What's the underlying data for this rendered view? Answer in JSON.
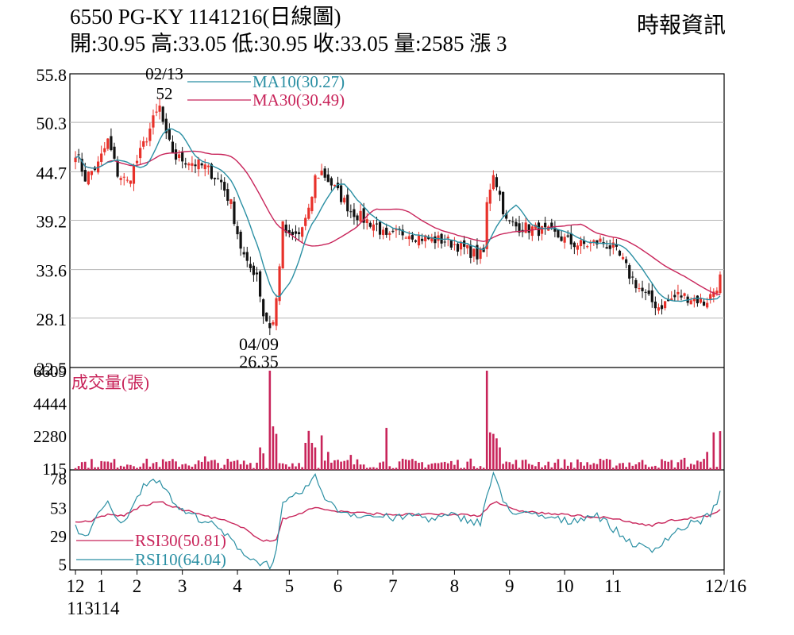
{
  "header": {
    "title": "6550  PG-KY 1141216(日線圖)",
    "quote": "開:30.95 高:33.05 低:30.95 收:33.05 量:2585 漲 3",
    "source": "時報資訊"
  },
  "chart_data": {
    "type": "candlestick",
    "colors": {
      "up": "#e8312a",
      "down": "#111111",
      "ma10": "#2a8fa3",
      "ma30": "#c8245a",
      "volume": "#c8245a",
      "rsi10": "#2a8fa3",
      "rsi30": "#c8245a",
      "grid": "#b5b5b5"
    },
    "price_panel": {
      "y_ticks": [
        "55.8",
        "50.3",
        "44.7",
        "39.2",
        "33.6",
        "28.1",
        "22.5"
      ],
      "ylim": [
        22.5,
        55.8
      ],
      "legend": [
        "MA10(30.27)",
        "MA30(30.49)"
      ],
      "annotations": [
        {
          "date": "02/13",
          "value": "52"
        },
        {
          "date": "04/09",
          "value": "26.35"
        }
      ]
    },
    "volume_panel": {
      "label": "成交量(張)",
      "y_ticks": [
        "6609",
        "4444",
        "2280",
        "115"
      ],
      "ylim": [
        0,
        6609
      ]
    },
    "rsi_panel": {
      "y_ticks": [
        "78",
        "53",
        "29",
        "5"
      ],
      "ylim": [
        0,
        85
      ],
      "legend": [
        "RSI30(50.81)",
        "RSI10(64.04)"
      ]
    },
    "x_labels": [
      {
        "text": "12",
        "sub": "113",
        "index": 0
      },
      {
        "text": "1",
        "sub": "114",
        "index": 8
      },
      {
        "text": "2",
        "sub": "",
        "index": 19
      },
      {
        "text": "3",
        "sub": "",
        "index": 33
      },
      {
        "text": "4",
        "sub": "",
        "index": 50
      },
      {
        "text": "5",
        "sub": "",
        "index": 66
      },
      {
        "text": "6",
        "sub": "",
        "index": 81
      },
      {
        "text": "7",
        "sub": "",
        "index": 98
      },
      {
        "text": "8",
        "sub": "",
        "index": 117
      },
      {
        "text": "9",
        "sub": "",
        "index": 134
      },
      {
        "text": "10",
        "sub": "",
        "index": 151
      },
      {
        "text": "11",
        "sub": "",
        "index": 166
      },
      {
        "text": "12/16",
        "sub": "",
        "index": 199
      }
    ],
    "close_anchors": [
      [
        0,
        47
      ],
      [
        3,
        44
      ],
      [
        7,
        45.5
      ],
      [
        10,
        48.2
      ],
      [
        13,
        44.5
      ],
      [
        16,
        43.5
      ],
      [
        20,
        46.8
      ],
      [
        24,
        50.5
      ],
      [
        26,
        52
      ],
      [
        28,
        48.5
      ],
      [
        31,
        46.3
      ],
      [
        35,
        45.9
      ],
      [
        40,
        45.2
      ],
      [
        45,
        43.5
      ],
      [
        48,
        41
      ],
      [
        51,
        36.2
      ],
      [
        53,
        34
      ],
      [
        56,
        33.2
      ],
      [
        58,
        28.5
      ],
      [
        60,
        27.2
      ],
      [
        61,
        27.6
      ],
      [
        62,
        30.2
      ],
      [
        64,
        38.5
      ],
      [
        66,
        37.2
      ],
      [
        69,
        37.6
      ],
      [
        72,
        40
      ],
      [
        74,
        44
      ],
      [
        76,
        44.7
      ],
      [
        79,
        43.3
      ],
      [
        82,
        41.8
      ],
      [
        85,
        40.3
      ],
      [
        89,
        39.3
      ],
      [
        93,
        38.6
      ],
      [
        96,
        37
      ],
      [
        99,
        37.6
      ],
      [
        102,
        37.9
      ],
      [
        106,
        37.3
      ],
      [
        110,
        37
      ],
      [
        114,
        36.9
      ],
      [
        117,
        36.5
      ],
      [
        120,
        36
      ],
      [
        124,
        35.2
      ],
      [
        126,
        35.5
      ],
      [
        127,
        41
      ],
      [
        128,
        43
      ],
      [
        129,
        44.7
      ],
      [
        131,
        42
      ],
      [
        133,
        39
      ],
      [
        136,
        38.5
      ],
      [
        140,
        38.3
      ],
      [
        144,
        38
      ],
      [
        147,
        37.7
      ],
      [
        150,
        37.2
      ],
      [
        153,
        36.6
      ],
      [
        156,
        36.4
      ],
      [
        159,
        36.5
      ],
      [
        162,
        36.8
      ],
      [
        166,
        36
      ],
      [
        169,
        34.5
      ],
      [
        171,
        33
      ],
      [
        174,
        31.5
      ],
      [
        177,
        30.2
      ],
      [
        180,
        29.4
      ],
      [
        183,
        30
      ],
      [
        186,
        30.7
      ],
      [
        189,
        30.5
      ],
      [
        192,
        30.2
      ],
      [
        194,
        29.8
      ],
      [
        196,
        30.6
      ],
      [
        198,
        31.8
      ],
      [
        199,
        33.05
      ]
    ],
    "rsi10_anchors": [
      [
        0,
        36
      ],
      [
        3,
        28
      ],
      [
        6,
        42
      ],
      [
        10,
        57
      ],
      [
        13,
        40
      ],
      [
        17,
        48
      ],
      [
        21,
        74
      ],
      [
        26,
        78
      ],
      [
        29,
        62
      ],
      [
        33,
        50
      ],
      [
        40,
        42
      ],
      [
        45,
        33
      ],
      [
        48,
        25
      ],
      [
        51,
        18
      ],
      [
        54,
        9
      ],
      [
        58,
        6
      ],
      [
        60,
        4
      ],
      [
        62,
        15
      ],
      [
        64,
        55
      ],
      [
        67,
        60
      ],
      [
        70,
        67
      ],
      [
        74,
        78
      ],
      [
        77,
        63
      ],
      [
        80,
        52
      ],
      [
        85,
        48
      ],
      [
        90,
        46
      ],
      [
        95,
        45
      ],
      [
        100,
        44
      ],
      [
        105,
        47
      ],
      [
        110,
        43
      ],
      [
        116,
        46
      ],
      [
        121,
        43
      ],
      [
        125,
        40
      ],
      [
        127,
        63
      ],
      [
        129,
        82
      ],
      [
        132,
        58
      ],
      [
        136,
        48
      ],
      [
        142,
        46
      ],
      [
        147,
        44
      ],
      [
        152,
        41
      ],
      [
        157,
        45
      ],
      [
        161,
        47
      ],
      [
        166,
        35
      ],
      [
        170,
        26
      ],
      [
        174,
        20
      ],
      [
        178,
        16
      ],
      [
        181,
        24
      ],
      [
        185,
        32
      ],
      [
        189,
        38
      ],
      [
        193,
        42
      ],
      [
        196,
        48
      ],
      [
        198,
        57
      ],
      [
        199,
        64.04
      ]
    ],
    "rsi30_anchors": [
      [
        0,
        40
      ],
      [
        5,
        42
      ],
      [
        10,
        47
      ],
      [
        15,
        46
      ],
      [
        20,
        54
      ],
      [
        26,
        58
      ],
      [
        32,
        52
      ],
      [
        40,
        46
      ],
      [
        46,
        42
      ],
      [
        52,
        35
      ],
      [
        58,
        25
      ],
      [
        62,
        25
      ],
      [
        64,
        43
      ],
      [
        68,
        47
      ],
      [
        74,
        53
      ],
      [
        80,
        50
      ],
      [
        90,
        48
      ],
      [
        100,
        47
      ],
      [
        110,
        47
      ],
      [
        120,
        47
      ],
      [
        125,
        46
      ],
      [
        128,
        56
      ],
      [
        130,
        58
      ],
      [
        135,
        51
      ],
      [
        145,
        48
      ],
      [
        155,
        46
      ],
      [
        165,
        44
      ],
      [
        172,
        40
      ],
      [
        178,
        38
      ],
      [
        184,
        42
      ],
      [
        190,
        44
      ],
      [
        196,
        46
      ],
      [
        199,
        50.81
      ]
    ],
    "volume_spikes": [
      [
        60,
        6609
      ],
      [
        61,
        2900
      ],
      [
        62,
        2400
      ],
      [
        127,
        6609
      ],
      [
        128,
        2500
      ],
      [
        129,
        2400
      ],
      [
        130,
        2100
      ],
      [
        131,
        1500
      ],
      [
        57,
        1500
      ],
      [
        58,
        1100
      ],
      [
        71,
        1800
      ],
      [
        72,
        2600
      ],
      [
        73,
        1800
      ],
      [
        74,
        1500
      ],
      [
        76,
        2300
      ],
      [
        78,
        1200
      ],
      [
        96,
        2800
      ],
      [
        40,
        900
      ],
      [
        85,
        1000
      ],
      [
        197,
        2500
      ],
      [
        199,
        2585
      ],
      [
        195,
        1200
      ],
      [
        188,
        800
      ]
    ]
  }
}
